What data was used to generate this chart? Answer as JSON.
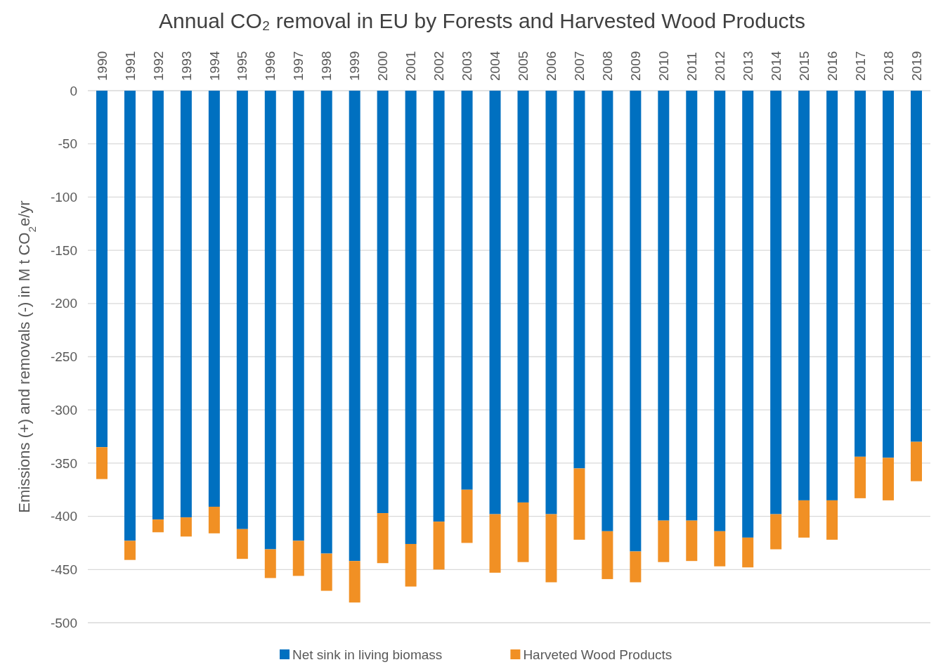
{
  "chart_data": {
    "type": "bar",
    "title": "Annual CO₂ removal in EU by Forests and Harvested Wood Products",
    "ylabel": "Emissions (+) and removals (-) in M t CO$_{2}$e/yr",
    "categories": [
      "1990",
      "1991",
      "1992",
      "1993",
      "1994",
      "1995",
      "1996",
      "1997",
      "1998",
      "1999",
      "2000",
      "2001",
      "2002",
      "2003",
      "2004",
      "2005",
      "2006",
      "2007",
      "2008",
      "2009",
      "2010",
      "2011",
      "2012",
      "2013",
      "2014",
      "2015",
      "2016",
      "2017",
      "2018",
      "2019"
    ],
    "stacked": true,
    "series": [
      {
        "name": "Net sink in living biomass",
        "color": "#0070c0",
        "values": [
          -335,
          -423,
          -403,
          -401,
          -391,
          -412,
          -431,
          -423,
          -435,
          -442,
          -397,
          -426,
          -405,
          -375,
          -398,
          -387,
          -398,
          -355,
          -414,
          -433,
          -404,
          -404,
          -414,
          -420,
          -398,
          -385,
          -385,
          -344,
          -345,
          -330
        ]
      },
      {
        "name": "Harveted Wood Products",
        "color": "#f19024",
        "values": [
          -30,
          -18,
          -12,
          -18,
          -25,
          -28,
          -27,
          -33,
          -35,
          -39,
          -47,
          -40,
          -45,
          -50,
          -55,
          -56,
          -64,
          -67,
          -45,
          -29,
          -39,
          -38,
          -33,
          -28,
          -33,
          -35,
          -37,
          -39,
          -40,
          -37
        ]
      }
    ],
    "ylim": [
      -500,
      0
    ],
    "yticks": [
      0,
      -50,
      -100,
      -150,
      -200,
      -250,
      -300,
      -350,
      -400,
      -450,
      -500
    ],
    "grid": "y",
    "legend": "bottom"
  }
}
